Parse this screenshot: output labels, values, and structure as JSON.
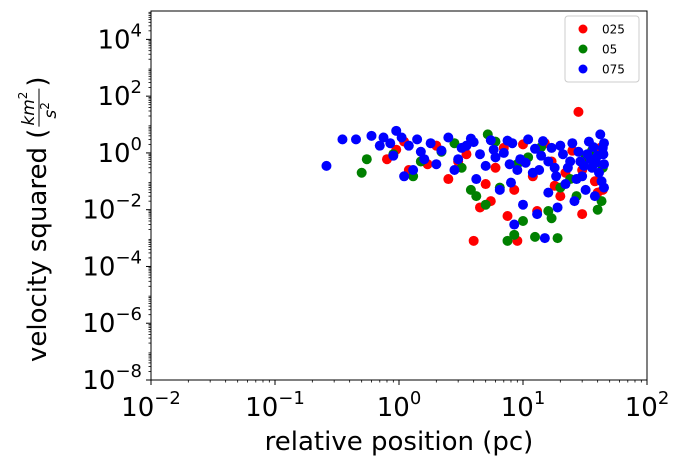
{
  "chart_data": {
    "type": "scatter",
    "xscale": "log",
    "yscale": "log",
    "xlim": [
      0.01,
      100
    ],
    "ylim": [
      1e-08,
      100000
    ],
    "xlabel": "relative position (pc)",
    "ylabel_prefix": "velocity squared (",
    "ylabel_unit_num": "km",
    "ylabel_unit_num_exp": "2",
    "ylabel_unit_den": "s",
    "ylabel_unit_den_exp": "2",
    "ylabel_suffix": ")",
    "x_ticks": [
      {
        "value": 0.01,
        "base": "10",
        "exp": "−2"
      },
      {
        "value": 0.1,
        "base": "10",
        "exp": "−1"
      },
      {
        "value": 1,
        "base": "10",
        "exp": "0"
      },
      {
        "value": 10,
        "base": "10",
        "exp": "1"
      },
      {
        "value": 100,
        "base": "10",
        "exp": "2"
      }
    ],
    "y_ticks": [
      {
        "value": 1e-08,
        "base": "10",
        "exp": "−8"
      },
      {
        "value": 1e-06,
        "base": "10",
        "exp": "−6"
      },
      {
        "value": 0.0001,
        "base": "10",
        "exp": "−4"
      },
      {
        "value": 0.01,
        "base": "10",
        "exp": "−2"
      },
      {
        "value": 1,
        "base": "10",
        "exp": "0"
      },
      {
        "value": 100,
        "base": "10",
        "exp": "2"
      },
      {
        "value": 10000,
        "base": "10",
        "exp": "4"
      }
    ],
    "grid": false,
    "legend_position": "top-right",
    "series": [
      {
        "name": "025",
        "color": "#ff0000",
        "points": [
          [
            28,
            28
          ],
          [
            4,
            0.0008
          ],
          [
            9,
            0.0008
          ],
          [
            30,
            0.007
          ],
          [
            7.5,
            0.006
          ],
          [
            13,
            0.009
          ],
          [
            4.5,
            0.012
          ],
          [
            5.5,
            0.02
          ],
          [
            8.5,
            0.05
          ],
          [
            40,
            0.04
          ],
          [
            20,
            0.03
          ],
          [
            0.8,
            0.6
          ],
          [
            0.95,
            1.3
          ],
          [
            1.2,
            0.25
          ],
          [
            1.7,
            0.4
          ],
          [
            2.5,
            0.12
          ],
          [
            3.5,
            0.9
          ],
          [
            6,
            0.3
          ],
          [
            12,
            0.15
          ],
          [
            17,
            0.5
          ],
          [
            25,
            1.2
          ],
          [
            35,
            0.8
          ],
          [
            42,
            1.5
          ],
          [
            15,
            2.2
          ],
          [
            10,
            2
          ],
          [
            7,
            1.5
          ],
          [
            2,
            1.8
          ],
          [
            1.1,
            2.5
          ],
          [
            3,
            0.5
          ],
          [
            5,
            0.08
          ],
          [
            22,
            0.2
          ],
          [
            30,
            0.25
          ],
          [
            38,
            0.1
          ],
          [
            44,
            0.05
          ],
          [
            18,
            0.07
          ]
        ]
      },
      {
        "name": "05",
        "color": "#008000",
        "points": [
          [
            0.5,
            0.2
          ],
          [
            0.55,
            0.6
          ],
          [
            5.2,
            4.5
          ],
          [
            7.5,
            0.0008
          ],
          [
            8.5,
            0.0013
          ],
          [
            12.5,
            0.0011
          ],
          [
            19,
            0.001
          ],
          [
            17,
            0.005
          ],
          [
            10,
            0.004
          ],
          [
            16,
            0.009
          ],
          [
            5,
            0.015
          ],
          [
            4.2,
            0.03
          ],
          [
            6.5,
            0.06
          ],
          [
            27,
            0.03
          ],
          [
            43,
            0.02
          ],
          [
            32,
            0.7
          ],
          [
            1.3,
            0.15
          ],
          [
            0.9,
            0.9
          ],
          [
            2.2,
            1.1
          ],
          [
            3.2,
            0.3
          ],
          [
            9,
            0.4
          ],
          [
            14,
            1.6
          ],
          [
            24,
            0.12
          ],
          [
            36,
            1.2
          ],
          [
            44,
            0.3
          ],
          [
            2.8,
            2.2
          ],
          [
            6,
            2.5
          ],
          [
            11,
            0.7
          ],
          [
            20,
            0.06
          ],
          [
            3.8,
            0.05
          ],
          [
            1.5,
            0.5
          ],
          [
            40,
            0.01
          ]
        ]
      },
      {
        "name": "075",
        "color": "#0000ff",
        "points": [
          [
            0.26,
            0.35
          ],
          [
            0.35,
            3
          ],
          [
            0.45,
            3
          ],
          [
            0.6,
            4
          ],
          [
            0.7,
            1.8
          ],
          [
            0.75,
            3.5
          ],
          [
            0.9,
            0.8
          ],
          [
            0.95,
            6
          ],
          [
            1.1,
            0.15
          ],
          [
            1.3,
            0.25
          ],
          [
            1.5,
            1.1
          ],
          [
            2,
            0.4
          ],
          [
            2.5,
            3.5
          ],
          [
            3,
            0.6
          ],
          [
            3.5,
            1.8
          ],
          [
            4.2,
            0.12
          ],
          [
            5,
            0.35
          ],
          [
            5.5,
            2.8
          ],
          [
            6.5,
            0.05
          ],
          [
            7,
            1
          ],
          [
            8,
            0.09
          ],
          [
            8.5,
            0.003
          ],
          [
            9.5,
            0.6
          ],
          [
            10,
            0.015
          ],
          [
            11,
            3
          ],
          [
            12,
            0.2
          ],
          [
            13,
            0.007
          ],
          [
            14,
            0.8
          ],
          [
            15,
            0.001
          ],
          [
            16,
            0.04
          ],
          [
            17,
            1.5
          ],
          [
            18,
            0.3
          ],
          [
            19,
            0.012
          ],
          [
            20,
            1.8
          ],
          [
            22,
            0.08
          ],
          [
            24,
            0.5
          ],
          [
            26,
            0.02
          ],
          [
            28,
            1.1
          ],
          [
            30,
            0.15
          ],
          [
            32,
            0.05
          ],
          [
            34,
            2.5
          ],
          [
            36,
            0.3
          ],
          [
            38,
            0.03
          ],
          [
            40,
            0.8
          ],
          [
            42,
            4.5
          ],
          [
            43,
            0.1
          ],
          [
            44,
            1.5
          ],
          [
            45,
            0.4
          ],
          [
            45,
            0.06
          ],
          [
            45,
            2.2
          ],
          [
            1.8,
            2.2
          ],
          [
            2.8,
            0.25
          ],
          [
            4,
            2.4
          ],
          [
            6,
            0.7
          ],
          [
            7.5,
            2.7
          ],
          [
            9,
            0.25
          ],
          [
            12.5,
            1.4
          ],
          [
            16,
            0.5
          ],
          [
            21,
            0.9
          ],
          [
            25,
            2.2
          ],
          [
            29,
            0.5
          ],
          [
            33,
            0.9
          ],
          [
            37,
            1.6
          ],
          [
            41,
            0.2
          ],
          [
            1.2,
            1.8
          ],
          [
            1.6,
            0.6
          ],
          [
            2.2,
            1.2
          ],
          [
            3.2,
            1.5
          ],
          [
            4.5,
            0.9
          ],
          [
            5.8,
            1.3
          ],
          [
            7.8,
            0.4
          ],
          [
            10.5,
            0.45
          ],
          [
            13.5,
            0.25
          ],
          [
            18.5,
            0.15
          ],
          [
            23,
            0.3
          ],
          [
            27,
            0.12
          ],
          [
            31,
            0.35
          ],
          [
            35,
            0.6
          ],
          [
            39,
            0.45
          ],
          [
            44.5,
            0.9
          ],
          [
            0.85,
            2.2
          ],
          [
            1.05,
            3.5
          ],
          [
            1.4,
            3
          ],
          [
            3.8,
            3.2
          ],
          [
            8.2,
            2.2
          ],
          [
            14.5,
            2.6
          ]
        ]
      }
    ]
  }
}
